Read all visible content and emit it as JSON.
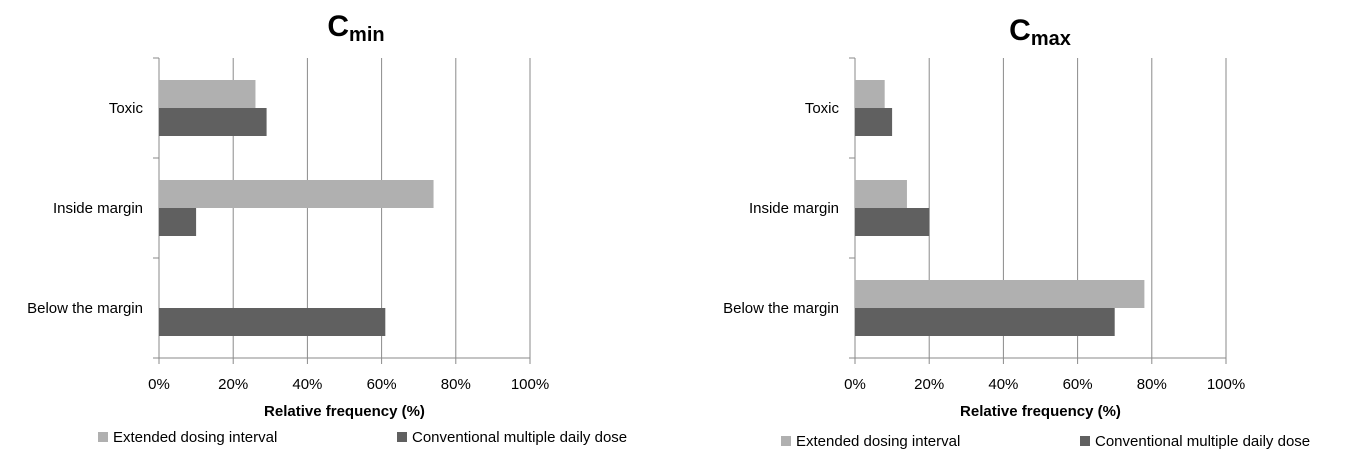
{
  "chart_data": [
    {
      "type": "bar",
      "orientation": "horizontal",
      "title": "C",
      "title_subscript": "min",
      "categories": [
        "Toxic",
        "Inside margin",
        "Below the margin"
      ],
      "series": [
        {
          "name": "Extended dosing interval",
          "color": "#b0b0b0",
          "values": [
            26,
            74,
            0
          ]
        },
        {
          "name": "Conventional multiple daily dose",
          "color": "#606060",
          "values": [
            29,
            10,
            61
          ]
        }
      ],
      "xlabel": "Relative frequency (%)",
      "xlim": [
        0,
        100
      ],
      "xticks": [
        "0%",
        "20%",
        "40%",
        "60%",
        "80%",
        "100%"
      ],
      "grid": true,
      "legend_position": "bottom"
    },
    {
      "type": "bar",
      "orientation": "horizontal",
      "title": "C",
      "title_subscript": "max",
      "categories": [
        "Toxic",
        "Inside margin",
        "Below the margin"
      ],
      "series": [
        {
          "name": "Extended dosing interval",
          "color": "#b0b0b0",
          "values": [
            8,
            14,
            78
          ]
        },
        {
          "name": "Conventional multiple daily dose",
          "color": "#606060",
          "values": [
            10,
            20,
            70
          ]
        }
      ],
      "xlabel": "Relative frequency (%)",
      "xlim": [
        0,
        100
      ],
      "xticks": [
        "0%",
        "20%",
        "40%",
        "60%",
        "80%",
        "100%"
      ],
      "grid": true,
      "legend_position": "bottom"
    }
  ]
}
